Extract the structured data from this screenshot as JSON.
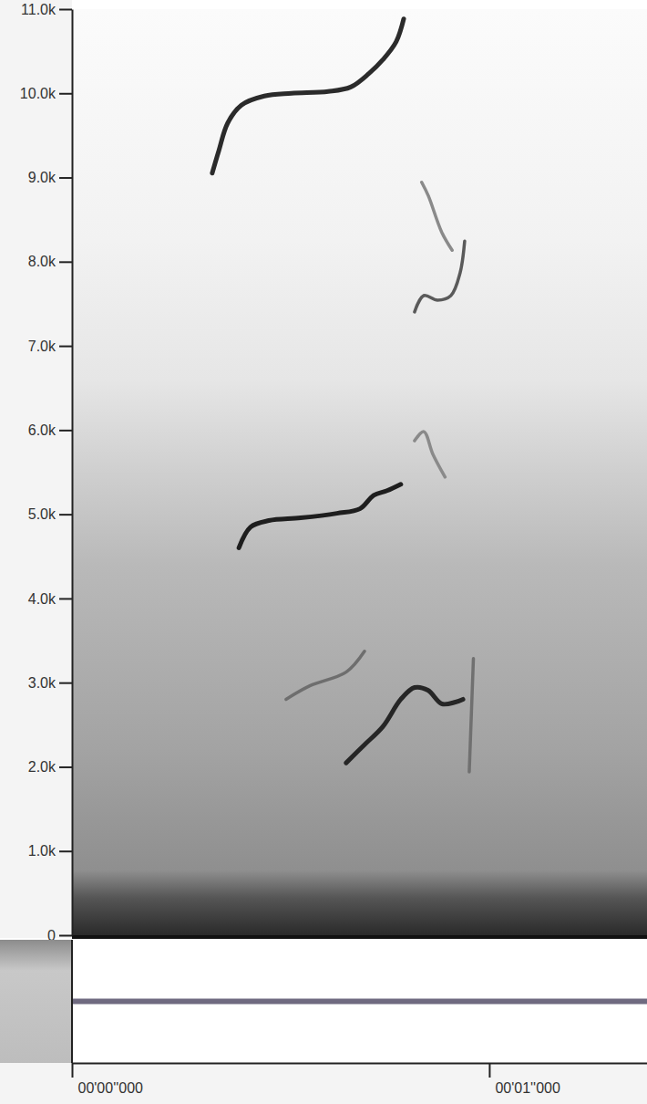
{
  "chart_data": {
    "type": "spectrogram",
    "ylim": [
      0,
      11000
    ],
    "yticks": [
      0,
      {
        "value": 1000,
        "label": "1.0k"
      },
      {
        "value": 2000,
        "label": "2.0k"
      },
      {
        "value": 3000,
        "label": "3.0k"
      },
      {
        "value": 4000,
        "label": "4.0k"
      },
      {
        "value": 5000,
        "label": "5.0k"
      },
      {
        "value": 6000,
        "label": "6.0k"
      },
      {
        "value": 7000,
        "label": "7.0k"
      },
      {
        "value": 8000,
        "label": "8.0k"
      },
      {
        "value": 9000,
        "label": "9.0k"
      },
      {
        "value": 10000,
        "label": "10.0k"
      },
      {
        "value": 11000,
        "label": "11.0k"
      }
    ],
    "xlim": [
      0,
      1.378
    ],
    "xticks": [
      {
        "value": 0,
        "label": "00'00''000"
      },
      {
        "value": 1,
        "label": "00'01''000"
      }
    ],
    "series": [
      {
        "color": "#2b2b2b",
        "x": [
          0.336,
          0.352,
          0.373,
          0.406,
          0.461,
          0.526,
          0.614,
          0.668,
          0.712,
          0.745,
          0.777,
          0.795
        ],
        "values": [
          9052,
          9321,
          9645,
          9860,
          9968,
          10000,
          10022,
          10075,
          10237,
          10399,
          10614,
          10884
        ]
      },
      {
        "color": "#1e1e1e",
        "x": [
          0.4,
          0.428,
          0.472,
          0.548,
          0.635,
          0.69,
          0.723,
          0.755,
          0.788
        ],
        "values": [
          4601,
          4849,
          4925,
          4957,
          5011,
          5065,
          5226,
          5280,
          5356
        ]
      },
      {
        "color": "#262626",
        "x": [
          0.657,
          0.701,
          0.745,
          0.788,
          0.821,
          0.853,
          0.886,
          0.919,
          0.937
        ],
        "values": [
          2047,
          2263,
          2478,
          2802,
          2942,
          2909,
          2748,
          2769,
          2802
        ]
      },
      {
        "color": "#6e6e6e",
        "x": [
          0.513,
          0.57,
          0.657,
          0.701
        ],
        "values": [
          2802,
          2963,
          3125,
          3373
        ]
      },
      {
        "color": "#5a5a5a",
        "x": [
          0.821,
          0.843,
          0.876,
          0.908,
          0.93,
          0.941
        ],
        "values": [
          7403,
          7597,
          7543,
          7597,
          7866,
          8244
        ]
      },
      {
        "color": "#707070",
        "x": [
          0.952,
          0.962
        ],
        "values": [
          1940,
          3287
        ]
      },
      {
        "color": "#8a8a8a",
        "x": [
          0.821,
          0.843,
          0.865,
          0.894
        ],
        "values": [
          5873,
          5981,
          5711,
          5442
        ]
      },
      {
        "color": "#8a8a8a",
        "x": [
          0.838,
          0.854,
          0.886,
          0.911
        ],
        "values": [
          8944,
          8782,
          8351,
          8136
        ]
      }
    ],
    "waveform": {
      "x": [
        0,
        1.378
      ],
      "values": [
        0,
        0
      ],
      "ylim": [
        -1,
        1
      ]
    }
  }
}
